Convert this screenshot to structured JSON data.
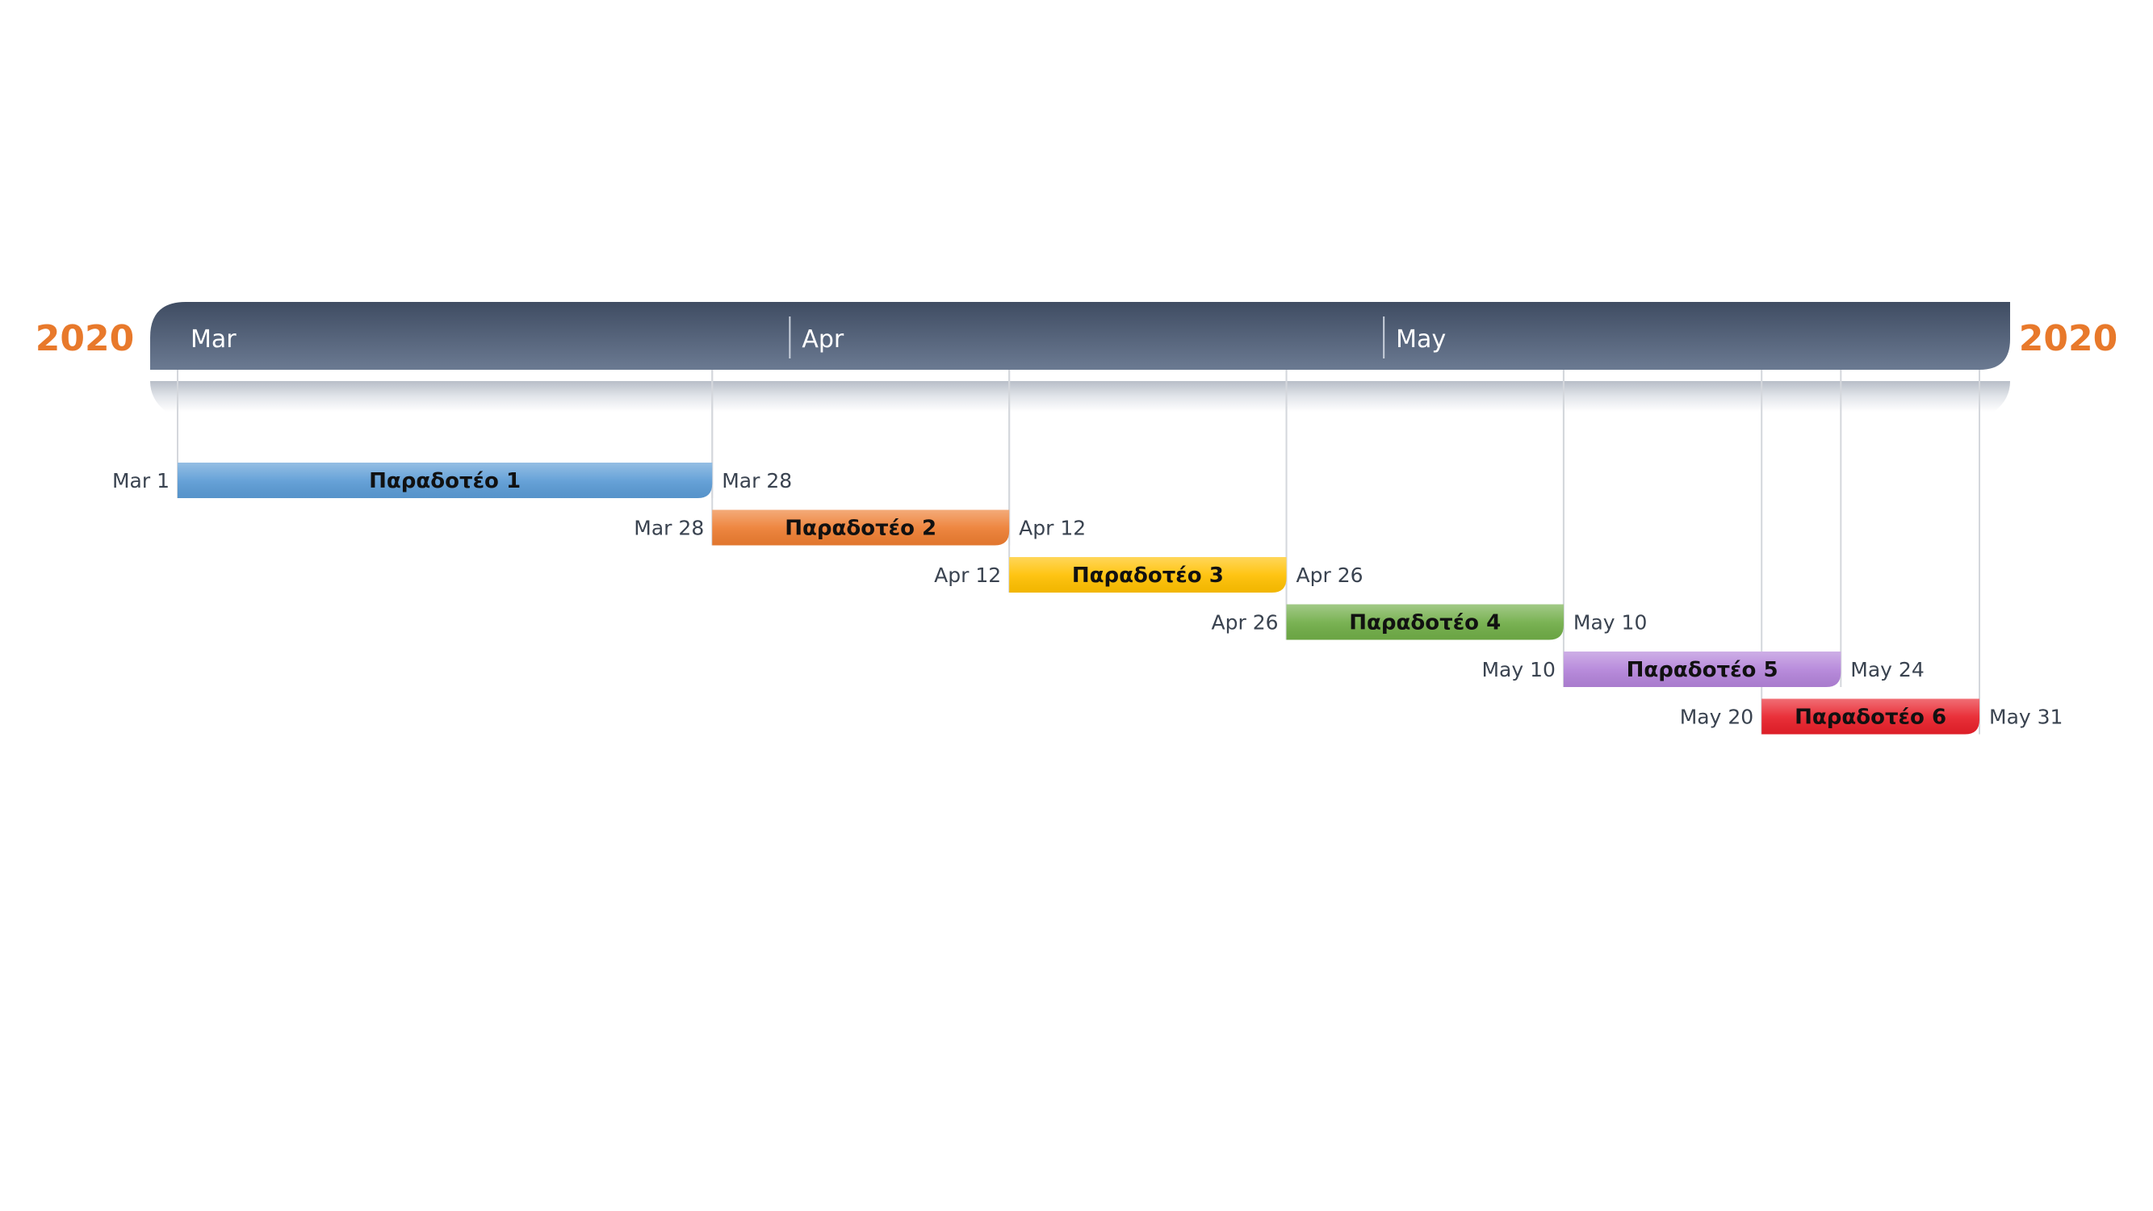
{
  "chart_data": {
    "type": "gantt",
    "year_label": "2020",
    "date_range": [
      "2020-03-01",
      "2020-05-31"
    ],
    "months": [
      {
        "label": "Mar",
        "start": "2020-03-01"
      },
      {
        "label": "Apr",
        "start": "2020-04-01"
      },
      {
        "label": "May",
        "start": "2020-05-01"
      }
    ],
    "tasks": [
      {
        "name": "Παραδοτέο 1",
        "start": "2020-03-01",
        "end": "2020-03-28",
        "start_label": "Mar 1",
        "end_label": "Mar 28",
        "color": "#5B9BD5"
      },
      {
        "name": "Παραδοτέο 2",
        "start": "2020-03-28",
        "end": "2020-04-12",
        "start_label": "Mar 28",
        "end_label": "Apr 12",
        "color": "#ED7D31"
      },
      {
        "name": "Παραδοτέο 3",
        "start": "2020-04-12",
        "end": "2020-04-26",
        "start_label": "Apr 12",
        "end_label": "Apr 26",
        "color": "#FFC000"
      },
      {
        "name": "Παραδοτέο 4",
        "start": "2020-04-26",
        "end": "2020-05-10",
        "start_label": "Apr 26",
        "end_label": "May 10",
        "color": "#70AD47"
      },
      {
        "name": "Παραδοτέο 5",
        "start": "2020-05-10",
        "end": "2020-05-24",
        "start_label": "May 10",
        "end_label": "May 24",
        "color": "#B383D9"
      },
      {
        "name": "Παραδοτέο 6",
        "start": "2020-05-20",
        "end": "2020-05-31",
        "start_label": "May 20",
        "end_label": "May 31",
        "color": "#E8202A"
      }
    ],
    "colors": {
      "year": "#E8792B",
      "band_top": "#3f4c62",
      "band_bottom": "#6b7a92",
      "date_text": "#3a4350"
    }
  }
}
